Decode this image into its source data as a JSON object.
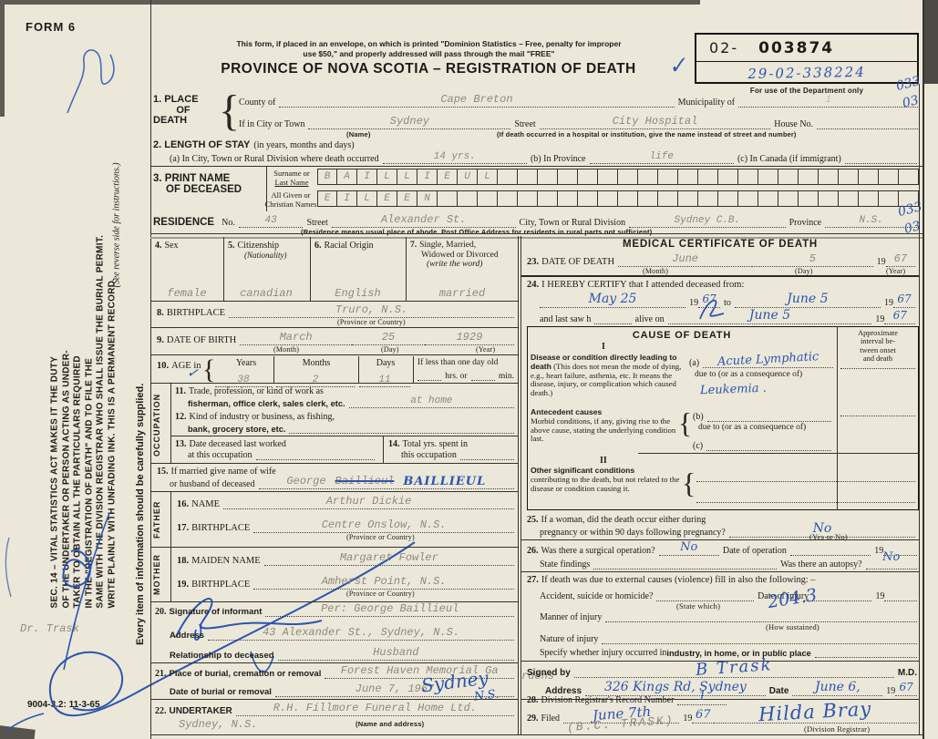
{
  "colors": {
    "paper": "#ebe8da",
    "ink": "#1d1c18",
    "typed": "#8e897b",
    "pen": "#2d54ae",
    "pencil": "#8b867a"
  },
  "page": {
    "form_no": "FORM 6",
    "print_code": "9004-3.2: 11-3-65",
    "dr_note": "Dr. Trask",
    "pencil_note": "(B.C. TRASK)"
  },
  "sidebar": {
    "notice_lines": [
      "SEC. 14 – VITAL STATISTICS ACT MAKES IT THE DUTY",
      "OF THE UNDERTAKER OR PERSON ACTING AS UNDER-",
      "TAKER TO OBTAIN ALL THE PARTICULARS REQUIRED",
      "IN THE \"REGISTRATION OF DEATH\" AND TO FILE THE",
      "SAME WITH THE DIVISION REGISTRAR WHO SHALL ISSUE THE BURIAL PERMIT.",
      "WRITE PLAINLY WITH UNFADING INK. THIS IS A PERMANENT RECORD."
    ],
    "reverse_note": "(See reverse side for instructions.)",
    "supply_note": "Every item of information should be carefully supplied."
  },
  "header": {
    "envelope_line1": "This form, if placed in an envelope, on which is printed \"Dominion Statistics – Free, penalty for improper",
    "envelope_line2": "use $50,\" and properly addressed will pass through the mail \"FREE\"",
    "title": "PROVINCE OF NOVA SCOTIA – REGISTRATION OF DEATH",
    "title_check": "✓"
  },
  "dept_box": {
    "serial_prefix": "02-",
    "serial_number": "003874",
    "written_serial": "29-02-338224",
    "caption": "For use of the Department only",
    "code_a": "033",
    "code_b": "03"
  },
  "s1": {
    "no": "1.",
    "label1": "PLACE",
    "label2": "OF",
    "label3": "DEATH",
    "county_label": "County of",
    "county_value": "Cape Breton",
    "municipality_label": "Municipality of",
    "municipality_value": "1",
    "city_label": "If in City or Town",
    "city_value": "Sydney",
    "city_caption": "(Name)",
    "street_label": "Street",
    "street_value": "City Hospital",
    "street_caption": "(If death occurred in a hospital or institution, give the name instead of street and number)",
    "house_label": "House No."
  },
  "s2": {
    "no": "2.",
    "label": "LENGTH OF STAY",
    "label_suffix": "(in years, months and days)",
    "a_label": "(a) In City, Town or Rural Division where death occurred",
    "a_value": "14 yrs.",
    "b_label": "(b) In Province",
    "b_value": "life",
    "c_label": "(c) In Canada (if immigrant)"
  },
  "s3": {
    "no": "3.",
    "label1": "PRINT NAME",
    "label2": "OF DECEASED",
    "surname_label1": "Surname or",
    "surname_label2": "Last Name",
    "given_label1": "All Given or",
    "given_label2": "Christian Names",
    "surname_letters": [
      "B",
      "A",
      "I",
      "L",
      "L",
      "I",
      "E",
      "U",
      "L"
    ],
    "given_letters": [
      "E",
      "I",
      "L",
      "E",
      "E",
      "N"
    ]
  },
  "residence": {
    "label": "RESIDENCE",
    "no_label": "No.",
    "no_value": "43",
    "street_label": "Street",
    "street_value": "Alexander St.",
    "city_label": "City, Town or Rural Division",
    "city_value": "Sydney C.B.",
    "province_label": "Province",
    "province_value": "N.S.",
    "caption": "(Residence means usual place of abode. Post Office Address for residents in rural parts not sufficient)",
    "code_a": "033",
    "code_b": "03"
  },
  "s4": {
    "no": "4.",
    "label": "Sex",
    "value": "female"
  },
  "s5": {
    "no": "5.",
    "label": "Citizenship",
    "sub": "(Nationality)",
    "value": "canadian"
  },
  "s6": {
    "no": "6.",
    "label": "Racial Origin",
    "value": "English"
  },
  "s7": {
    "no": "7.",
    "label1": "Single, Married,",
    "label2": "Widowed or Divorced",
    "sub": "(write the word)",
    "value": "married"
  },
  "s8": {
    "no": "8.",
    "label": "BIRTHPLACE",
    "value": "Truro, N.S.",
    "caption": "(Province or Country)"
  },
  "s9": {
    "no": "9.",
    "label": "DATE OF BIRTH",
    "month": "March",
    "month_cap": "(Month)",
    "day": "25",
    "day_cap": "(Day)",
    "year": "1929",
    "year_cap": "(Year)"
  },
  "s10": {
    "no": "10.",
    "label": "AGE in",
    "years_label": "Years",
    "years": "38",
    "months_label": "Months",
    "months": "2",
    "days_label": "Days",
    "days": "11",
    "less_label": "If less than one day old",
    "hrs_label": "hrs. or",
    "min_label": "min.",
    "check": "✓"
  },
  "occupation": {
    "side_label": "OCCUPATION",
    "s11": {
      "no": "11.",
      "line1": "Trade, profession, or kind of work as",
      "line2": "fisherman, office clerk, sales clerk, etc.",
      "value": "at home"
    },
    "s12": {
      "no": "12.",
      "line1": "Kind of industry or business, as fishing,",
      "line2": "bank, grocery store, etc."
    },
    "s13": {
      "no": "13.",
      "line1": "Date deceased last worked",
      "line2": "at this occupation"
    },
    "s14": {
      "no": "14.",
      "line1": "Total yrs. spent in",
      "line2": "this occupation"
    }
  },
  "s15": {
    "no": "15.",
    "line1": "If married give name of wife",
    "line2": "or husband of deceased",
    "typed_value": "George",
    "struck_value": "Baillieul",
    "written_value": "BAILLIEUL"
  },
  "father": {
    "side_label": "FATHER",
    "s16": {
      "no": "16.",
      "label": "NAME",
      "value": "Arthur Dickie"
    },
    "s17": {
      "no": "17.",
      "label": "BIRTHPLACE",
      "value": "Centre Onslow, N.S.",
      "caption": "(Province or Country)"
    }
  },
  "mother": {
    "side_label": "MOTHER",
    "s18": {
      "no": "18.",
      "label": "MAIDEN NAME",
      "value": "Margaret Fowler"
    },
    "s19": {
      "no": "19.",
      "label": "BIRTHPLACE",
      "value": "Amherst Point, N.S.",
      "caption": "(Province or Country)"
    }
  },
  "s20": {
    "no": "20.",
    "label": "Signature of informant",
    "typed_value": "Per: George Baillieul",
    "address_label": "Address",
    "address_value": "43 Alexander St., Sydney, N.S.",
    "rel_label": "Relationship to deceased",
    "rel_value": "Husband"
  },
  "s21": {
    "no": "21.",
    "label": "Place of burial, cremation or removal",
    "value": "Forest Haven Memorial Ga",
    "value_overflow": "rdens",
    "date_label": "Date of burial or removal",
    "date_value": "June 7, 1967",
    "written1": "Sydney",
    "written2": "N.S."
  },
  "s22": {
    "no": "22.",
    "label": "UNDERTAKER",
    "value": "R.H. Fillmore Funeral Home Ltd.",
    "value2": "Sydney, N.S.",
    "caption": "(Name and address)"
  },
  "medical": {
    "title": "MEDICAL CERTIFICATE OF DEATH",
    "s23": {
      "no": "23.",
      "label": "DATE OF DEATH",
      "month": "June",
      "month_cap": "(Month)",
      "day": "5",
      "day_cap": "(Day)",
      "year_prefix": "19",
      "year": "67",
      "year_cap": "(Year)"
    },
    "s24": {
      "no": "24.",
      "label": "I HEREBY CERTIFY that I attended deceased from:",
      "from_value": "May 25",
      "year_prefix": "19",
      "from_year": "67",
      "to_label": "to",
      "to_value": "June 5",
      "to_year": "67",
      "last_label": "and last saw h",
      "last_label2": "alive on",
      "last_value": "June 5",
      "last_year": "67"
    },
    "cause": {
      "title": "CAUSE OF DEATH",
      "interval_l1": "Approximate",
      "interval_l2": "interval be-",
      "interval_l3": "tween onset",
      "interval_l4": "and death",
      "part1": "I",
      "disease_lead": "Disease or condition directly leading to death",
      "disease_rest": "(This does not mean the mode of dying, e.g., heart failure, asthenia, etc. It means the disease, injury, or complication which caused death.)",
      "a_label": "(a)",
      "a_value": "Acute Lymphatic",
      "due1": "due to (or as a consequence of)",
      "a_value2": "Leukemia .",
      "antecedent_lead": "Antecedent causes",
      "antecedent_rest": "Morbid conditions, if any, giving rise to the above cause, stating the underlying condition last.",
      "b_label": "(b)",
      "due2": "due to (or as a consequence of)",
      "c_label": "(c)",
      "part2": "II",
      "other_lead": "Other significant conditions",
      "other_rest": "contributing to the death, but not related to the disease or condition causing it."
    },
    "s25": {
      "no": "25.",
      "line1": "If a woman, did the death occur either during",
      "line2": "pregnancy or within 90 days following pregnancy?",
      "value": "No",
      "caption": "(Yes or No)"
    },
    "s26": {
      "no": "26.",
      "q1": "Was there a surgical operation?",
      "q1_value": "No",
      "q2": "Date of operation",
      "year_prefix": "19",
      "q3": "State findings",
      "q4": "Was there an autopsy?",
      "q4_value": "No"
    },
    "s27": {
      "no": "27.",
      "intro": "If death was due to external causes (violence) fill in also the following: –",
      "q1": "Accident, suicide or homicide?",
      "q1_cap": "(State which)",
      "q2": "Date of injury",
      "year_prefix": "19",
      "q3": "Manner of injury",
      "q3_cap": "(How sustained)",
      "q3_written": "204.3",
      "q4": "Nature of injury",
      "q5a": "Specify whether injury occurred in ",
      "q5b": "industry, in home, or in public place"
    },
    "signed": {
      "label": "Signed by",
      "value": "B Trask",
      "md": "M.D.",
      "address_label": "Address",
      "address_value": "326 Kings Rd, Sydney",
      "date_label": "Date",
      "date_value": "June 6,",
      "year_prefix": "19",
      "year": "67"
    },
    "s28": {
      "no": "28.",
      "label": "Division Registrar's Record Number",
      "value": "1"
    },
    "s29": {
      "no": "29.",
      "label": "Filed",
      "date": "June 7th",
      "year_prefix": "19",
      "year": "67",
      "registrar": "Hilda Bray",
      "caption": "(Division Registrar)"
    }
  }
}
